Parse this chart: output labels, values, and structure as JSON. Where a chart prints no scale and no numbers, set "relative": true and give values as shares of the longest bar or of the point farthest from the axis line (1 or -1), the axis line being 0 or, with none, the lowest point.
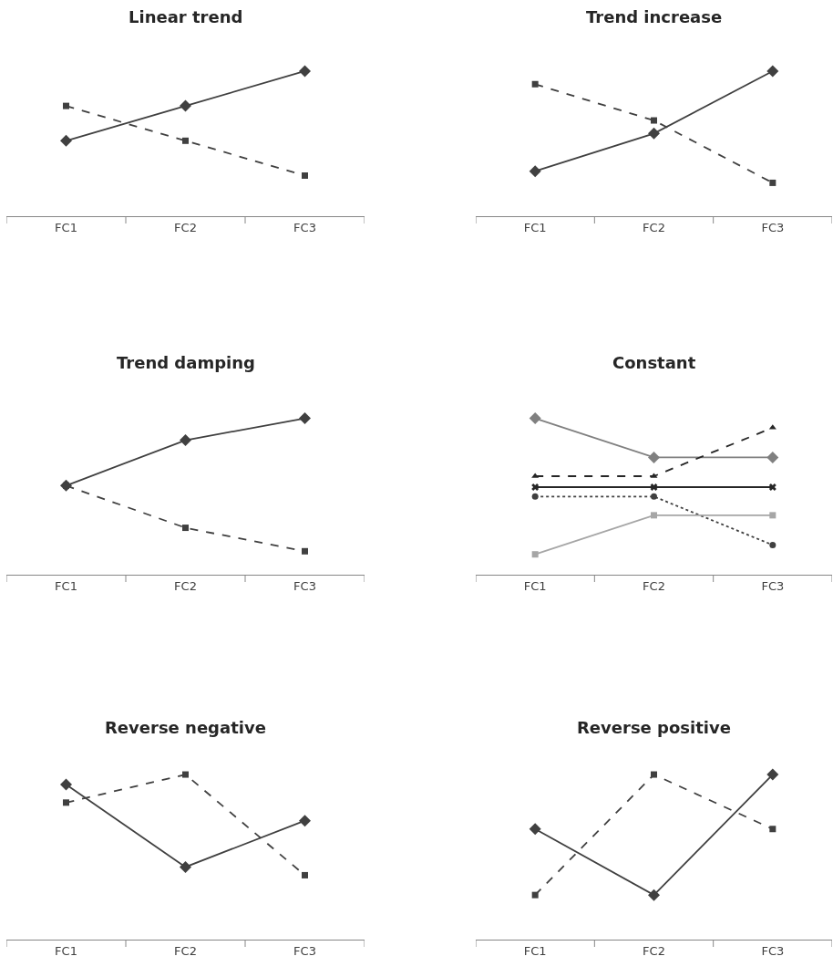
{
  "chart_data": [
    {
      "type": "line",
      "title": "Linear trend",
      "relative": true,
      "categories": [
        "FC1",
        "FC2",
        "FC3"
      ],
      "series": [
        {
          "color": "#404040",
          "line_style": "solid",
          "marker": "diamond",
          "values": [
            0.52,
            0.76,
            1
          ]
        },
        {
          "color": "#404040",
          "line_style": "dashed",
          "marker": "square",
          "values": [
            0.76,
            0.52,
            0.28
          ]
        }
      ]
    },
    {
      "type": "line",
      "title": "Trend increase",
      "relative": true,
      "categories": [
        "FC1",
        "FC2",
        "FC3"
      ],
      "series": [
        {
          "color": "#404040",
          "line_style": "solid",
          "marker": "diamond",
          "values": [
            0.31,
            0.57,
            1
          ]
        },
        {
          "color": "#404040",
          "line_style": "dashed",
          "marker": "square",
          "values": [
            0.91,
            0.66,
            0.23
          ]
        }
      ]
    },
    {
      "type": "line",
      "title": "Trend damping",
      "relative": true,
      "categories": [
        "FC1",
        "FC2",
        "FC3"
      ],
      "series": [
        {
          "color": "#404040",
          "line_style": "solid",
          "marker": "diamond",
          "values": [
            0.57,
            0.86,
            1
          ]
        },
        {
          "color": "#404040",
          "line_style": "dashed",
          "marker": "square",
          "values": [
            0.57,
            0.3,
            0.15
          ]
        }
      ]
    },
    {
      "type": "line",
      "title": "Constant",
      "relative": true,
      "categories": [
        "FC1",
        "FC2",
        "FC3"
      ],
      "series": [
        {
          "color": "#808080",
          "line_style": "solid",
          "marker": "diamond",
          "values": [
            1,
            0.75,
            0.75
          ]
        },
        {
          "color": "#262626",
          "line_style": "dashed",
          "marker": "triangle",
          "values": [
            0.63,
            0.63,
            0.94
          ]
        },
        {
          "color": "#262626",
          "line_style": "solid",
          "marker": "cross",
          "values": [
            0.56,
            0.56,
            0.56
          ]
        },
        {
          "color": "#404040",
          "line_style": "dotted",
          "marker": "circle",
          "values": [
            0.5,
            0.5,
            0.19
          ]
        },
        {
          "color": "#a6a6a6",
          "line_style": "solid",
          "marker": "square",
          "values": [
            0.13,
            0.38,
            0.38
          ]
        }
      ]
    },
    {
      "type": "line",
      "title": "Reverse negative",
      "relative": true,
      "categories": [
        "FC1",
        "FC2",
        "FC3"
      ],
      "series": [
        {
          "color": "#404040",
          "line_style": "solid",
          "marker": "diamond",
          "values": [
            0.94,
            0.44,
            0.72
          ]
        },
        {
          "color": "#404040",
          "line_style": "dashed",
          "marker": "square",
          "values": [
            0.83,
            1,
            0.39
          ]
        }
      ]
    },
    {
      "type": "line",
      "title": "Reverse positive",
      "relative": true,
      "categories": [
        "FC1",
        "FC2",
        "FC3"
      ],
      "series": [
        {
          "color": "#404040",
          "line_style": "solid",
          "marker": "diamond",
          "values": [
            0.67,
            0.27,
            1
          ]
        },
        {
          "color": "#404040",
          "line_style": "dashed",
          "marker": "square",
          "values": [
            0.27,
            1,
            0.67
          ]
        }
      ]
    }
  ]
}
